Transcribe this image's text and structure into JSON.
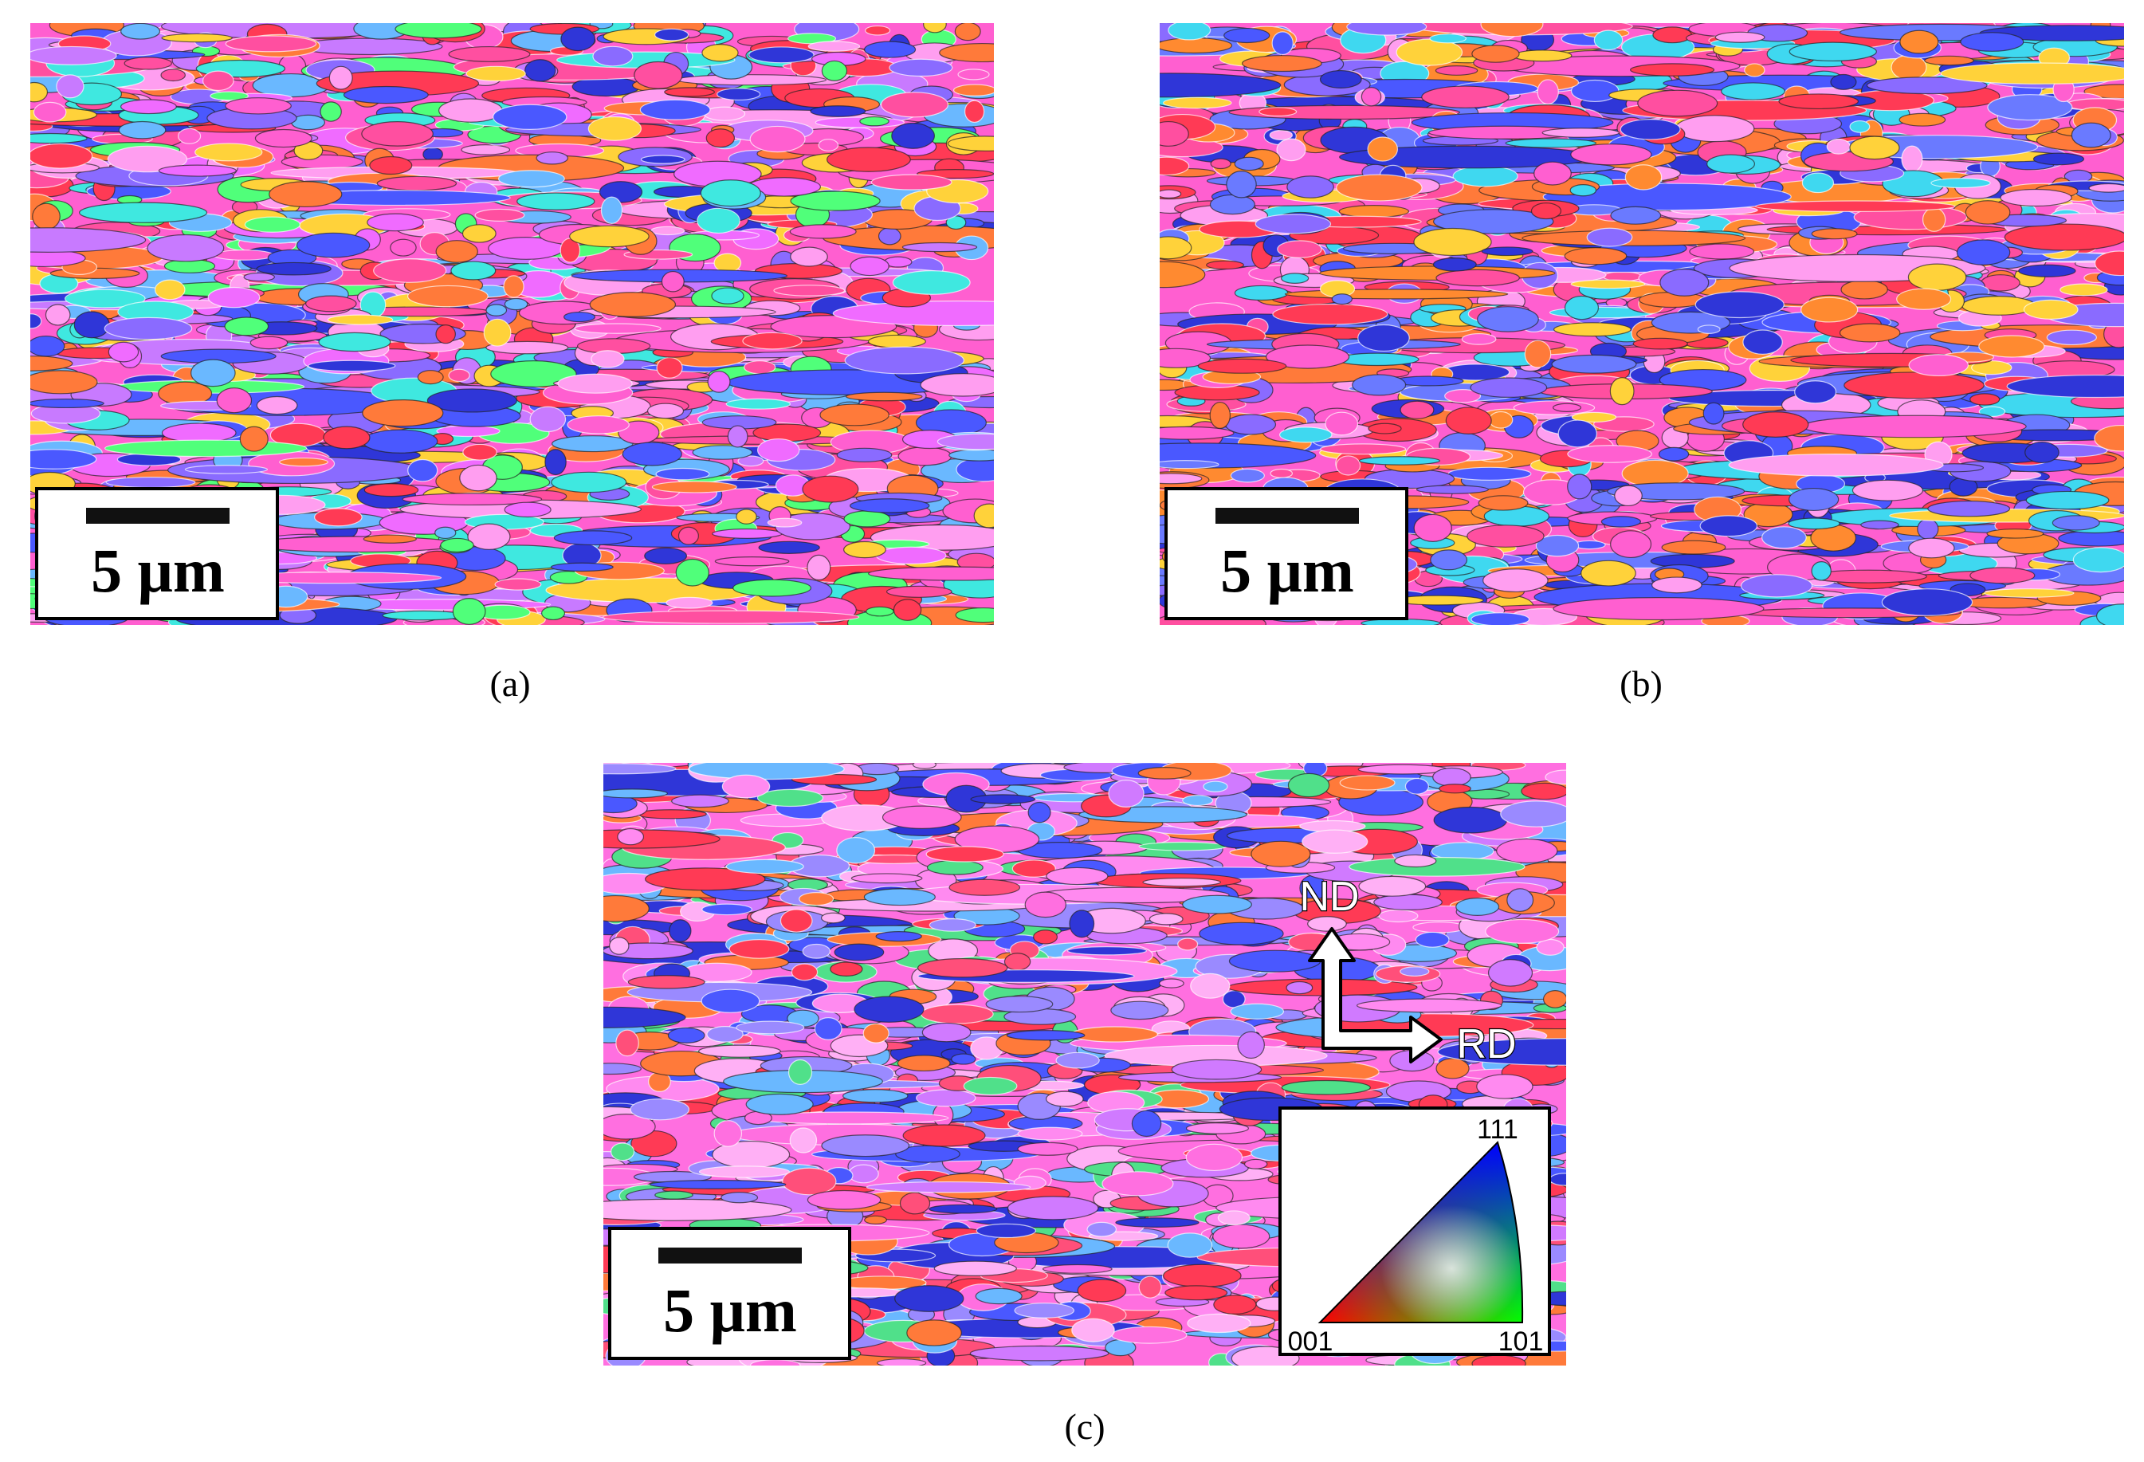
{
  "panels": [
    {
      "caption": "(a)",
      "scale_bar": "5 μm"
    },
    {
      "caption": "(b)",
      "scale_bar": "5 μm"
    },
    {
      "caption": "(c)",
      "scale_bar": "5 μm"
    }
  ],
  "orientation": {
    "normal": "ND",
    "rolling": "RD"
  },
  "ipf_legend": {
    "corner_001": "001",
    "corner_101": "101",
    "corner_111": "111"
  }
}
